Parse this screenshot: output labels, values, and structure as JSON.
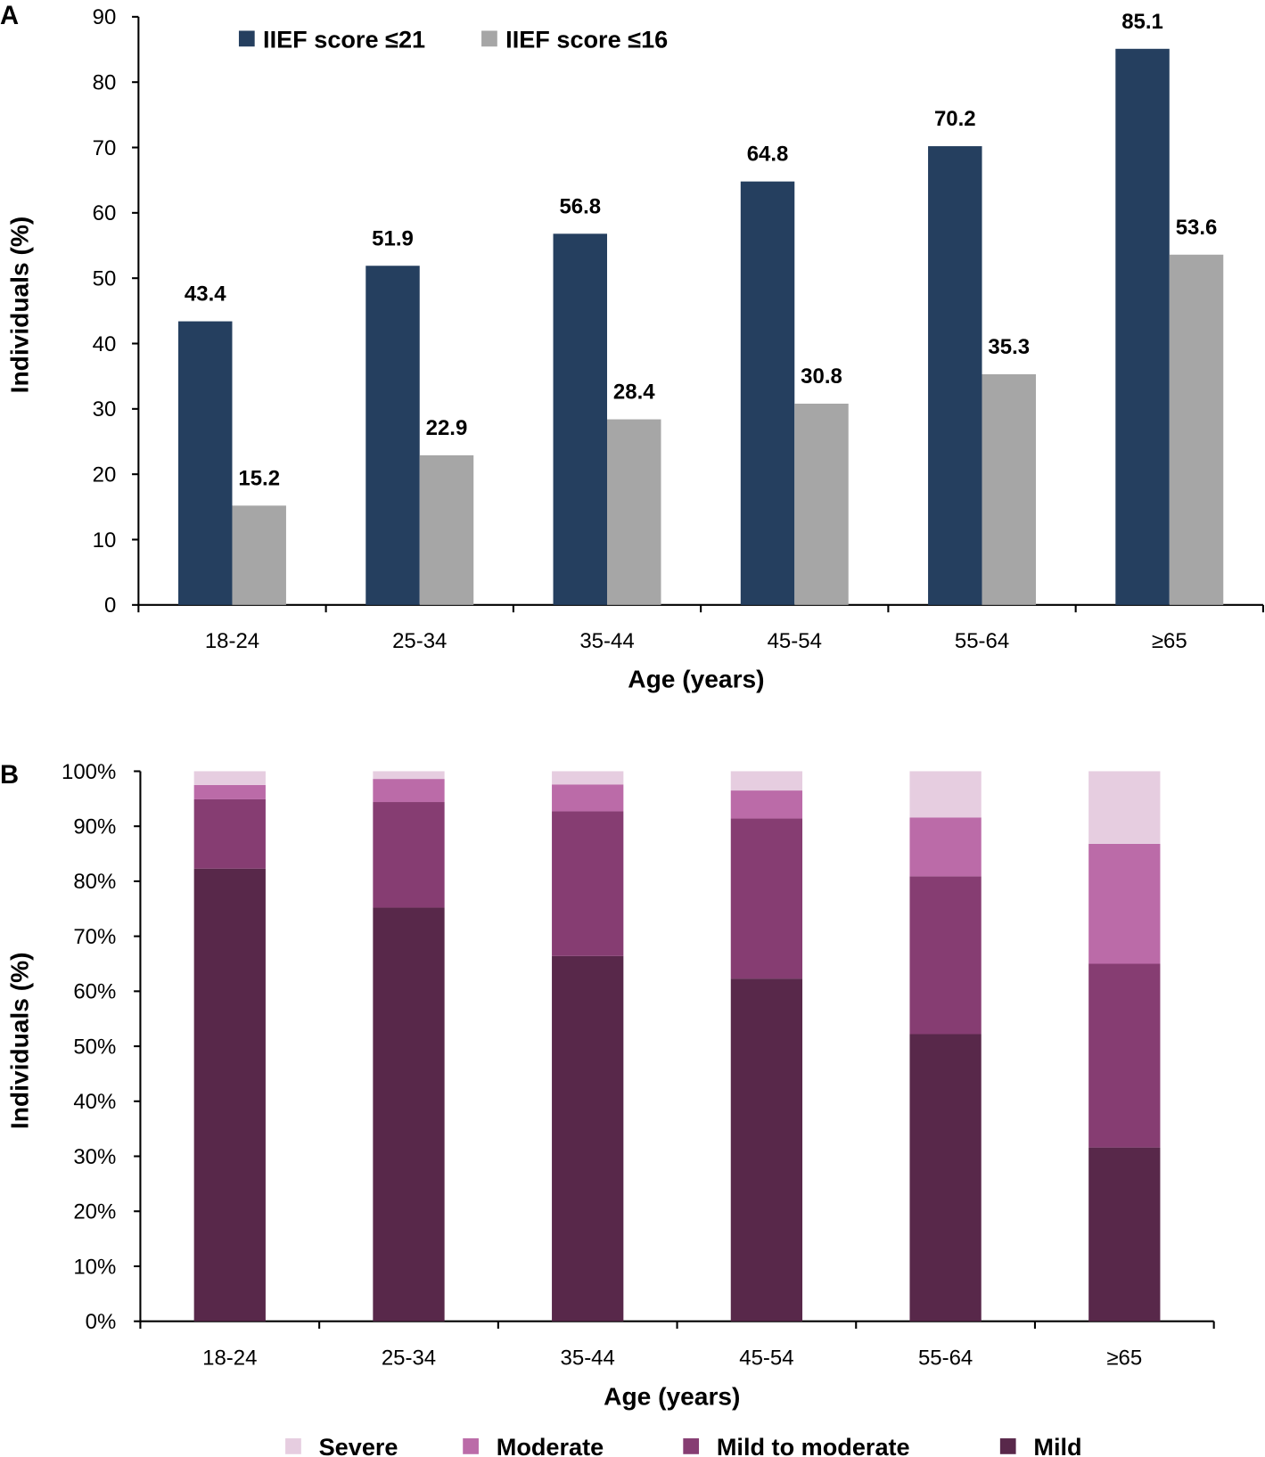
{
  "chart_data": [
    {
      "panel_label": "A",
      "type": "bar",
      "categories": [
        "18-24",
        "25-34",
        "35-44",
        "45-54",
        "55-64",
        "≥65"
      ],
      "series": [
        {
          "name": "IIEF score ≤21",
          "color": "#253f5f",
          "values": [
            43.4,
            51.9,
            56.8,
            64.8,
            70.2,
            85.1
          ]
        },
        {
          "name": "IIEF score ≤16",
          "color": "#a6a6a6",
          "values": [
            15.2,
            22.9,
            28.4,
            30.8,
            35.3,
            53.6
          ]
        }
      ],
      "xlabel": "Age (years)",
      "ylabel": "Individuals (%)",
      "ylim": [
        0,
        90
      ],
      "yticks": [
        "0",
        "10",
        "20",
        "30",
        "40",
        "50",
        "60",
        "70",
        "80",
        "90"
      ],
      "legend": "top-left",
      "grid": false
    },
    {
      "panel_label": "B",
      "type": "bar",
      "stacked": true,
      "categories": [
        "18-24",
        "25-34",
        "35-44",
        "45-54",
        "55-64",
        "≥65"
      ],
      "series": [
        {
          "name": "Mild",
          "color": "#58284a",
          "values": [
            82.3,
            75.2,
            66.4,
            62.3,
            52.2,
            31.6
          ]
        },
        {
          "name": "Mild to moderate",
          "color": "#863d72",
          "values": [
            12.6,
            19.2,
            26.3,
            29.1,
            28.7,
            33.4
          ]
        },
        {
          "name": "Moderate",
          "color": "#bb6ba8",
          "values": [
            2.6,
            4.2,
            4.9,
            5.1,
            10.7,
            21.8
          ]
        },
        {
          "name": "Severe",
          "color": "#e6cde0",
          "values": [
            2.5,
            1.4,
            2.4,
            3.5,
            8.4,
            13.2
          ]
        }
      ],
      "legend_order": [
        "Severe",
        "Moderate",
        "Mild to moderate",
        "Mild"
      ],
      "xlabel": "Age (years)",
      "ylabel": "Individuals (%)",
      "ylim": [
        0,
        100
      ],
      "yticks": [
        "0%",
        "10%",
        "20%",
        "30%",
        "40%",
        "50%",
        "60%",
        "70%",
        "80%",
        "90%",
        "100%"
      ],
      "legend": "bottom",
      "grid": false
    }
  ]
}
